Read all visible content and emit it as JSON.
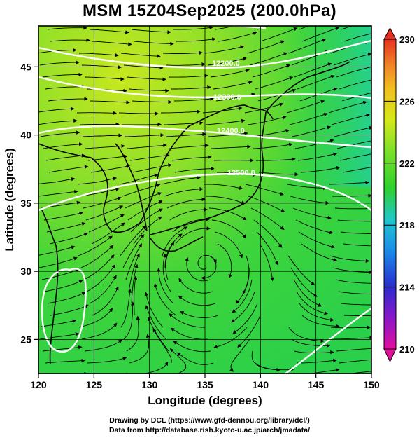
{
  "title": "MSM 15Z04Sep2025 (200.0hPa)",
  "xaxis": {
    "label": "Longitude (degrees)",
    "range": [
      120,
      150
    ],
    "ticks": [
      "120",
      "125",
      "130",
      "135",
      "140",
      "145",
      "150"
    ]
  },
  "yaxis": {
    "label": "Latitude  (degrees)",
    "range": [
      22.5,
      48
    ],
    "ticks": [
      "25",
      "30",
      "35",
      "40",
      "45"
    ]
  },
  "colorbar": {
    "min": 210,
    "max": 230,
    "labels": [
      "230",
      "226",
      "222",
      "218",
      "214",
      "210"
    ],
    "stops": [
      "#e0109a",
      "#8a18c8",
      "#2a2ad0",
      "#1a8ee8",
      "#20c8c8",
      "#2ed02e",
      "#7ee02a",
      "#d6e81a",
      "#f0c020",
      "#f08028",
      "#e83020"
    ]
  },
  "contours": [
    {
      "label": "12200.0"
    },
    {
      "label": "12300.0"
    },
    {
      "label": "12400.0"
    },
    {
      "label": "12500.0"
    }
  ],
  "footer": {
    "line1": "Drawing by DCL (https://www.gfd-dennou.org/library/dcl/)",
    "line2": "Data from http://database.rish.kyoto-u.ac.jp/arch/jmadata/"
  }
}
